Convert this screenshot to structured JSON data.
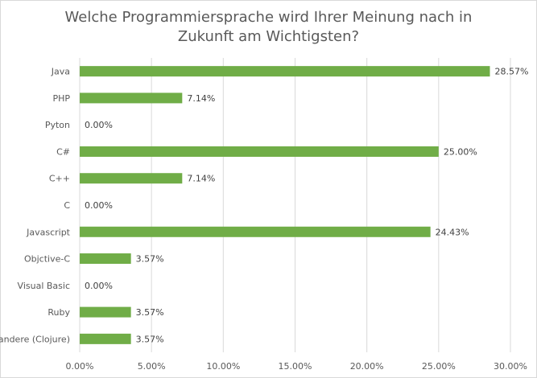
{
  "chart_data": {
    "type": "bar",
    "orientation": "horizontal",
    "title": "Welche Programmiersprache wird Ihrer Meinung nach in Zukunft am Wichtigsten?",
    "categories": [
      "Java",
      "PHP",
      "Pyton",
      "C#",
      "C++",
      "C",
      "Javascript",
      "Objctive-C",
      "Visual Basic",
      "Ruby",
      "andere (Clojure)"
    ],
    "values": [
      28.57,
      7.14,
      0.0,
      25.0,
      7.14,
      0.0,
      24.43,
      3.57,
      0.0,
      3.57,
      3.57
    ],
    "data_labels": [
      "28.57%",
      "7.14%",
      "0.00%",
      "25.00%",
      "7.14%",
      "0.00%",
      "24.43%",
      "3.57%",
      "0.00%",
      "3.57%",
      "3.57%"
    ],
    "xlim": [
      0,
      30
    ],
    "x_ticks": [
      0,
      5,
      10,
      15,
      20,
      25,
      30
    ],
    "x_tick_labels": [
      "0.00%",
      "5.00%",
      "10.00%",
      "15.00%",
      "20.00%",
      "25.00%",
      "30.00%"
    ],
    "grid": "vertical",
    "legend": "none",
    "bar_color": "#70ad47",
    "grid_color": "#d9d9d9",
    "text_color": "#595959"
  }
}
